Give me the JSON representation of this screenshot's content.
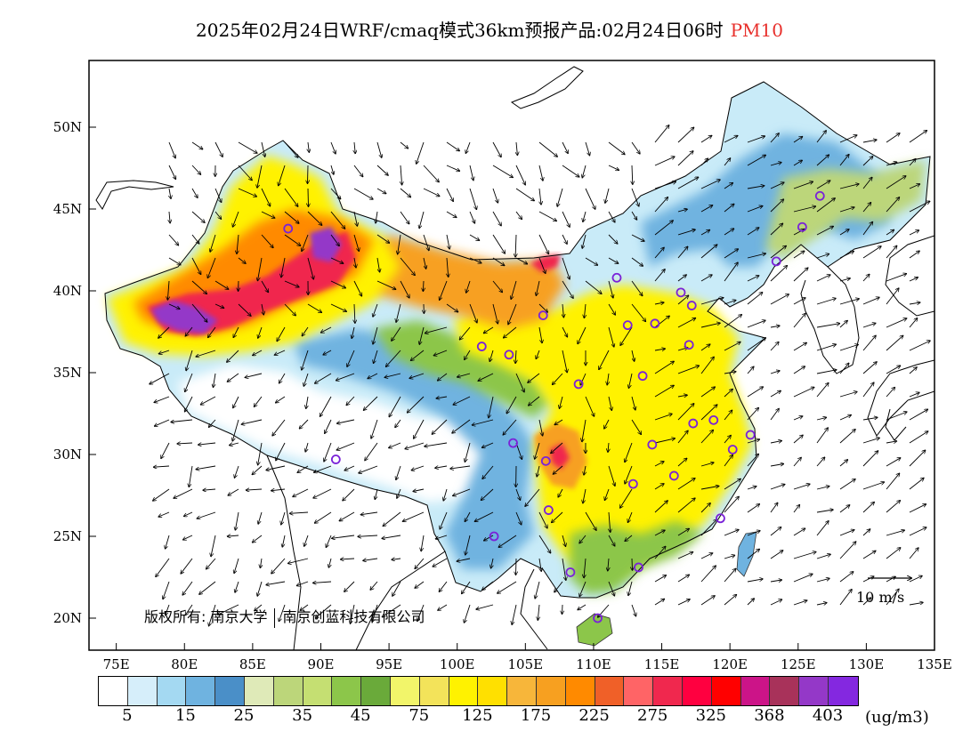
{
  "title": {
    "main": "2025年02月24日WRF/cmaq模式36km预报产品:02月24日06时",
    "variable": "PM10"
  },
  "axes": {
    "lat_labels": [
      "50N",
      "45N",
      "40N",
      "35N",
      "30N",
      "25N",
      "20N"
    ],
    "lon_labels": [
      "75E",
      "80E",
      "85E",
      "90E",
      "95E",
      "100E",
      "105E",
      "110E",
      "115E",
      "120E",
      "125E",
      "130E",
      "135E"
    ]
  },
  "copyright": {
    "text1": "版权所有: 南京大学",
    "text2": "南京创蓝科技有限公司"
  },
  "wind_reference": {
    "label": "10 m/s"
  },
  "colorbar": {
    "colors": [
      "#ffffff",
      "#d6eefa",
      "#a4d9f2",
      "#6fb3e0",
      "#4a8fc8",
      "#dfeab8",
      "#bcd67a",
      "#c5df72",
      "#8cc64a",
      "#6aaa3a",
      "#f2f56a",
      "#f3e35a",
      "#fff200",
      "#ffe000",
      "#f7b63a",
      "#f7a020",
      "#ff8a00",
      "#f06028",
      "#ff6466",
      "#f0284e",
      "#ff0040",
      "#ff0000",
      "#cc1488",
      "#a8325a",
      "#9438c8",
      "#8428e0"
    ],
    "tick_labels": [
      "5",
      "15",
      "25",
      "35",
      "45",
      "75",
      "125",
      "175",
      "225",
      "275",
      "325",
      "368",
      "403"
    ],
    "unit": "(ug/m3)"
  },
  "stations": [
    {
      "lon": 87.6,
      "lat": 43.8
    },
    {
      "lon": 91.1,
      "lat": 29.7
    },
    {
      "lon": 101.8,
      "lat": 36.6
    },
    {
      "lon": 103.8,
      "lat": 36.1
    },
    {
      "lon": 106.3,
      "lat": 38.5
    },
    {
      "lon": 111.7,
      "lat": 40.8
    },
    {
      "lon": 116.4,
      "lat": 39.9
    },
    {
      "lon": 117.2,
      "lat": 39.1
    },
    {
      "lon": 112.5,
      "lat": 37.9
    },
    {
      "lon": 114.5,
      "lat": 38.0
    },
    {
      "lon": 113.6,
      "lat": 34.8
    },
    {
      "lon": 117.0,
      "lat": 36.7
    },
    {
      "lon": 108.9,
      "lat": 34.3
    },
    {
      "lon": 104.1,
      "lat": 30.7
    },
    {
      "lon": 106.5,
      "lat": 29.6
    },
    {
      "lon": 106.7,
      "lat": 26.6
    },
    {
      "lon": 102.7,
      "lat": 25.0
    },
    {
      "lon": 108.3,
      "lat": 22.8
    },
    {
      "lon": 113.3,
      "lat": 23.1
    },
    {
      "lon": 110.3,
      "lat": 20.0
    },
    {
      "lon": 112.9,
      "lat": 28.2
    },
    {
      "lon": 114.3,
      "lat": 30.6
    },
    {
      "lon": 115.9,
      "lat": 28.7
    },
    {
      "lon": 117.3,
      "lat": 31.9
    },
    {
      "lon": 118.8,
      "lat": 32.1
    },
    {
      "lon": 120.2,
      "lat": 30.3
    },
    {
      "lon": 121.5,
      "lat": 31.2
    },
    {
      "lon": 119.3,
      "lat": 26.1
    },
    {
      "lon": 123.4,
      "lat": 41.8
    },
    {
      "lon": 125.3,
      "lat": 43.9
    },
    {
      "lon": 126.6,
      "lat": 45.8
    }
  ]
}
